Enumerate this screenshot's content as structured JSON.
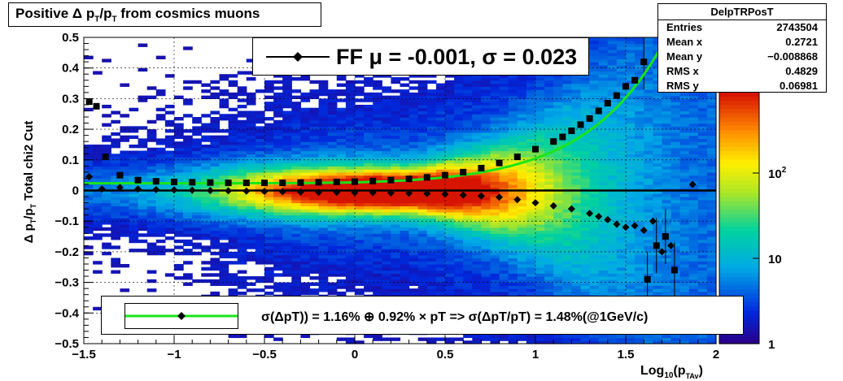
{
  "title": "Positive Δ p_T/p_T from cosmics muons",
  "title_parts": {
    "a": "Positive Δ p",
    "s1": "T",
    "b": "/p",
    "s2": "T",
    "c": " from cosmics muons"
  },
  "stats": {
    "name": "DelpTRPosT",
    "rows": [
      {
        "label": "Entries",
        "value": "2743504"
      },
      {
        "label": "Mean x",
        "value": "0.2721"
      },
      {
        "label": "Mean y",
        "value": "−0.008868"
      },
      {
        "label": "RMS x",
        "value": "0.4829"
      },
      {
        "label": "RMS y",
        "value": "0.06981"
      }
    ]
  },
  "ff_legend": "FF μ = -0.001, σ =   0.023",
  "fit_legend": "σ(ΔpT)) =  1.16% ⊕  0.92% × pT => σ(ΔpT/pT) =  1.48%(@1GeV/c)",
  "colors": {
    "fit_line": "#19e619",
    "zero_line": "#000000",
    "markers": "#000000"
  },
  "chart_data": {
    "type": "heatmap",
    "xlabel": "Log10(pTAv)",
    "ylabel": "Δ pT/pT  Total chi2 Cut",
    "xlim": [
      -1.5,
      2
    ],
    "ylim": [
      -0.5,
      0.5
    ],
    "x_ticks": [
      "−1.5",
      "−1",
      "−0.5",
      "0",
      "0.5",
      "1",
      "1.5",
      "2"
    ],
    "y_ticks": [
      "−0.5",
      "−0.4",
      "−0.3",
      "−0.2",
      "−0.1",
      "0",
      "0.1",
      "0.2",
      "0.3",
      "0.4",
      "0.5"
    ],
    "z_scale": "log",
    "z_ticks": [
      "1",
      "10",
      "10^2"
    ],
    "grid": true,
    "series": [
      {
        "name": "FF mean",
        "marker": "diamond",
        "x": [
          -1.47,
          -1.4,
          -1.3,
          -1.2,
          -1.1,
          -1.0,
          -0.9,
          -0.8,
          -0.7,
          -0.6,
          -0.5,
          -0.4,
          -0.3,
          -0.2,
          -0.1,
          0.0,
          0.1,
          0.2,
          0.3,
          0.4,
          0.5,
          0.6,
          0.7,
          0.8,
          0.9,
          1.0,
          1.1,
          1.2,
          1.3,
          1.35,
          1.4,
          1.45,
          1.5,
          1.55,
          1.6,
          1.65,
          1.7,
          1.75,
          1.87
        ],
        "y": [
          0.045,
          0.005,
          0.01,
          0.005,
          0.003,
          0.002,
          0.001,
          0.0,
          -0.001,
          -0.002,
          -0.003,
          -0.004,
          -0.005,
          -0.006,
          -0.006,
          -0.007,
          -0.007,
          -0.008,
          -0.009,
          -0.01,
          -0.012,
          -0.015,
          -0.018,
          -0.022,
          -0.03,
          -0.04,
          -0.05,
          -0.06,
          -0.075,
          -0.085,
          -0.095,
          -0.11,
          -0.12,
          -0.115,
          -0.13,
          -0.1,
          -0.2,
          -0.18,
          0.02
        ]
      },
      {
        "name": "FF sigma",
        "marker": "square",
        "x": [
          -1.47,
          -1.43,
          -1.38,
          -1.3,
          -1.2,
          -1.1,
          -1.0,
          -0.9,
          -0.8,
          -0.7,
          -0.6,
          -0.5,
          -0.4,
          -0.3,
          -0.2,
          -0.1,
          0.0,
          0.1,
          0.2,
          0.3,
          0.4,
          0.5,
          0.6,
          0.7,
          0.8,
          0.9,
          1.0,
          1.1,
          1.15,
          1.2,
          1.25,
          1.3,
          1.35,
          1.4,
          1.45,
          1.5,
          1.55,
          1.6,
          1.62,
          1.67,
          1.72,
          1.77
        ],
        "y": [
          0.29,
          0.275,
          0.11,
          0.05,
          0.034,
          0.03,
          0.028,
          0.027,
          0.026,
          0.025,
          0.025,
          0.025,
          0.025,
          0.026,
          0.027,
          0.028,
          0.029,
          0.031,
          0.034,
          0.038,
          0.043,
          0.05,
          0.06,
          0.073,
          0.09,
          0.11,
          0.135,
          0.16,
          0.175,
          0.195,
          0.215,
          0.235,
          0.26,
          0.285,
          0.31,
          0.34,
          0.36,
          0.42,
          -0.29,
          -0.18,
          -0.15,
          -0.26
        ]
      },
      {
        "name": "fit",
        "x_range": [
          -1.5,
          1.8
        ]
      }
    ]
  }
}
